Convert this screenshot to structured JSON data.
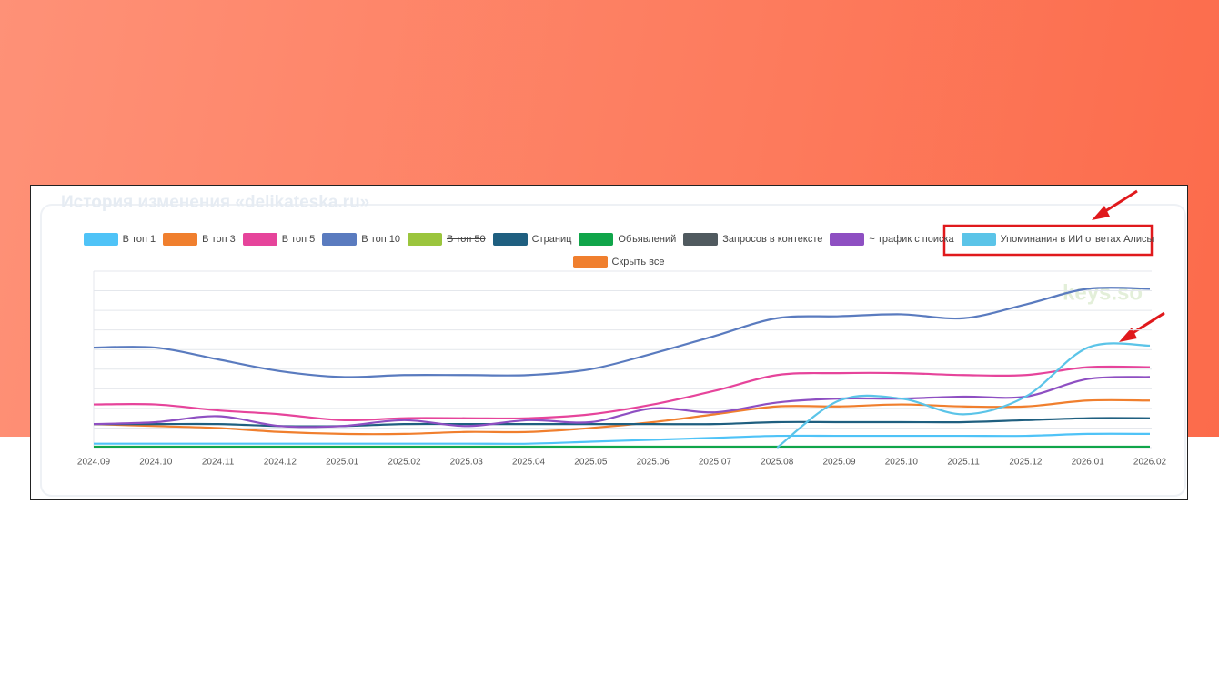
{
  "chart_data": {
    "type": "line",
    "title": "История изменения «delikateska.ru»",
    "watermark": "keys.so",
    "categories": [
      "2024.09",
      "2024.10",
      "2024.11",
      "2024.12",
      "2025.01",
      "2025.02",
      "2025.03",
      "2025.04",
      "2025.05",
      "2025.06",
      "2025.07",
      "2025.08",
      "2025.09",
      "2025.10",
      "2025.11",
      "2025.12",
      "2026.01",
      "2026.02"
    ],
    "ylim": [
      0,
      9
    ],
    "series": [
      {
        "name": "В топ 1",
        "color": "#4fc3f7",
        "values": [
          0.2,
          0.2,
          0.2,
          0.2,
          0.2,
          0.2,
          0.2,
          0.2,
          0.3,
          0.4,
          0.5,
          0.6,
          0.6,
          0.6,
          0.6,
          0.6,
          0.7,
          0.7
        ]
      },
      {
        "name": "В топ 3",
        "color": "#f07f2e",
        "values": [
          1.2,
          1.1,
          1.0,
          0.8,
          0.7,
          0.7,
          0.8,
          0.8,
          1.0,
          1.3,
          1.7,
          2.1,
          2.1,
          2.2,
          2.1,
          2.1,
          2.4,
          2.4
        ]
      },
      {
        "name": "В топ 5",
        "color": "#e6449b",
        "values": [
          2.2,
          2.2,
          1.9,
          1.7,
          1.4,
          1.5,
          1.5,
          1.5,
          1.7,
          2.2,
          2.9,
          3.7,
          3.8,
          3.8,
          3.7,
          3.7,
          4.1,
          4.1
        ]
      },
      {
        "name": "В топ 10",
        "color": "#5a7bbf",
        "values": [
          5.1,
          5.1,
          4.5,
          3.9,
          3.6,
          3.7,
          3.7,
          3.7,
          4.0,
          4.8,
          5.7,
          6.6,
          6.7,
          6.8,
          6.6,
          7.3,
          8.1,
          8.1
        ]
      },
      {
        "name": "В топ 50",
        "color": "#9bc53d",
        "hidden": true,
        "values": [
          null,
          null,
          null,
          null,
          null,
          null,
          null,
          null,
          null,
          null,
          null,
          null,
          null,
          null,
          null,
          null,
          null,
          null
        ]
      },
      {
        "name": "Страниц",
        "color": "#1f5f80",
        "values": [
          1.2,
          1.2,
          1.2,
          1.1,
          1.1,
          1.2,
          1.2,
          1.2,
          1.2,
          1.2,
          1.2,
          1.3,
          1.3,
          1.3,
          1.3,
          1.4,
          1.5,
          1.5
        ]
      },
      {
        "name": "Объявлений",
        "color": "#10a54a",
        "values": [
          0.05,
          0.05,
          0.05,
          0.05,
          0.05,
          0.05,
          0.05,
          0.05,
          0.05,
          0.05,
          0.05,
          0.05,
          0.05,
          0.05,
          0.05,
          0.05,
          0.05,
          0.05
        ]
      },
      {
        "name": "Запросов в контексте",
        "color": "#505a5f",
        "values": [
          null,
          null,
          null,
          null,
          null,
          null,
          null,
          null,
          null,
          null,
          null,
          null,
          null,
          null,
          null,
          null,
          null,
          null
        ]
      },
      {
        "name": "~ трафик с поиска",
        "color": "#8e4fc2",
        "values": [
          1.2,
          1.3,
          1.6,
          1.1,
          1.1,
          1.4,
          1.1,
          1.4,
          1.3,
          2.0,
          1.8,
          2.3,
          2.5,
          2.5,
          2.6,
          2.6,
          3.5,
          3.6
        ]
      },
      {
        "name": "Упоминания в ИИ ответах Алисы",
        "color": "#5bc4e8",
        "values": [
          null,
          null,
          null,
          null,
          null,
          null,
          null,
          null,
          null,
          null,
          null,
          0,
          2.4,
          2.5,
          1.7,
          2.6,
          5.1,
          5.2
        ]
      }
    ],
    "hide_all": {
      "name": "Скрыть все",
      "color": "#f07f2e"
    }
  }
}
